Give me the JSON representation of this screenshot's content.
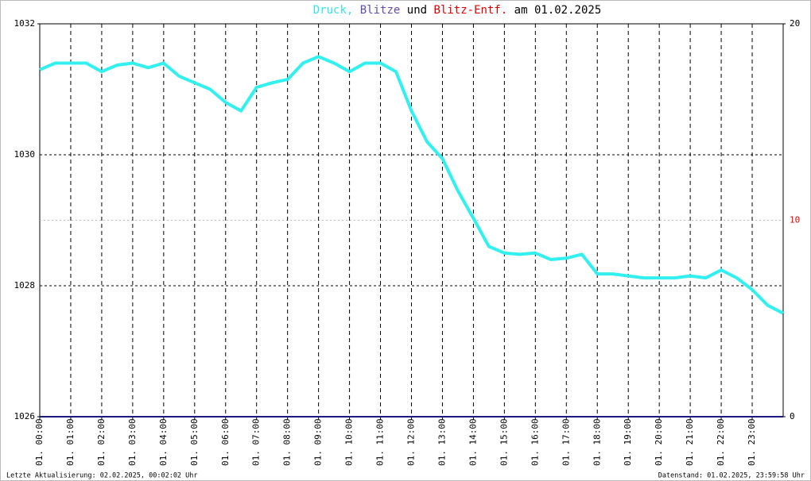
{
  "chart_data": {
    "type": "line",
    "title_parts": [
      {
        "text": "Druck,",
        "color": "#33e6e6"
      },
      {
        "text": "Blitze",
        "color": "#5a4fb0"
      },
      {
        "text": "und",
        "color": "#000000"
      },
      {
        "text": "Blitz-Entf.",
        "color": "#e00000"
      },
      {
        "text": "am 01.02.2025",
        "color": "#000000"
      }
    ],
    "xlim": [
      0,
      24
    ],
    "xticks": [
      {
        "value": 0,
        "label": "01. 00:00"
      },
      {
        "value": 1,
        "label": "01. 01:00"
      },
      {
        "value": 2,
        "label": "01. 02:00"
      },
      {
        "value": 3,
        "label": "01. 03:00"
      },
      {
        "value": 4,
        "label": "01. 04:00"
      },
      {
        "value": 5,
        "label": "01. 05:00"
      },
      {
        "value": 6,
        "label": "01. 06:00"
      },
      {
        "value": 7,
        "label": "01. 07:00"
      },
      {
        "value": 8,
        "label": "01. 08:00"
      },
      {
        "value": 9,
        "label": "01. 09:00"
      },
      {
        "value": 10,
        "label": "01. 10:00"
      },
      {
        "value": 11,
        "label": "01. 11:00"
      },
      {
        "value": 12,
        "label": "01. 12:00"
      },
      {
        "value": 13,
        "label": "01. 13:00"
      },
      {
        "value": 14,
        "label": "01. 14:00"
      },
      {
        "value": 15,
        "label": "01. 15:00"
      },
      {
        "value": 16,
        "label": "01. 16:00"
      },
      {
        "value": 17,
        "label": "01. 17:00"
      },
      {
        "value": 18,
        "label": "01. 18:00"
      },
      {
        "value": 19,
        "label": "01. 19:00"
      },
      {
        "value": 20,
        "label": "01. 20:00"
      },
      {
        "value": 21,
        "label": "01. 21:00"
      },
      {
        "value": 22,
        "label": "01. 22:00"
      },
      {
        "value": 23,
        "label": "01. 23:00"
      }
    ],
    "ylim": [
      1026,
      1032
    ],
    "yticks": [
      1026,
      1028,
      1030,
      1032
    ],
    "y2lim": [
      0,
      20
    ],
    "y2ticks": [
      0,
      10,
      20
    ],
    "grid": true,
    "series": [
      {
        "name": "Druck",
        "color": "#33f0f0",
        "x": [
          0,
          0.5,
          1,
          1.5,
          2,
          2.5,
          3,
          3.5,
          4,
          4.5,
          5,
          5.5,
          6,
          6.5,
          7,
          7.5,
          8,
          8.5,
          9,
          9.5,
          10,
          10.5,
          11,
          11.5,
          12,
          12.5,
          13,
          13.5,
          14,
          14.5,
          15,
          15.5,
          16,
          16.5,
          17,
          17.5,
          18,
          18.5,
          19,
          19.5,
          20,
          20.5,
          21,
          21.5,
          22,
          22.5,
          23,
          23.5,
          24
        ],
        "values": [
          1031.3,
          1031.4,
          1031.4,
          1031.4,
          1031.27,
          1031.37,
          1031.4,
          1031.33,
          1031.4,
          1031.2,
          1031.1,
          1031.0,
          1030.8,
          1030.67,
          1031.03,
          1031.1,
          1031.15,
          1031.4,
          1031.5,
          1031.4,
          1031.27,
          1031.4,
          1031.4,
          1031.27,
          1030.67,
          1030.2,
          1029.94,
          1029.45,
          1029.03,
          1028.6,
          1028.5,
          1028.48,
          1028.5,
          1028.4,
          1028.42,
          1028.48,
          1028.18,
          1028.18,
          1028.15,
          1028.12,
          1028.12,
          1028.12,
          1028.15,
          1028.12,
          1028.24,
          1028.12,
          1027.94,
          1027.7,
          1027.58
        ]
      },
      {
        "name": "Blitze",
        "color": "#1a1a80",
        "axis": "y2",
        "x": [
          0,
          24
        ],
        "values": [
          0,
          0
        ]
      }
    ],
    "footer_left": "Letzte Aktualisierung: 02.02.2025, 00:02:02 Uhr",
    "footer_right": "Datenstand: 01.02.2025, 23:59:58 Uhr"
  }
}
